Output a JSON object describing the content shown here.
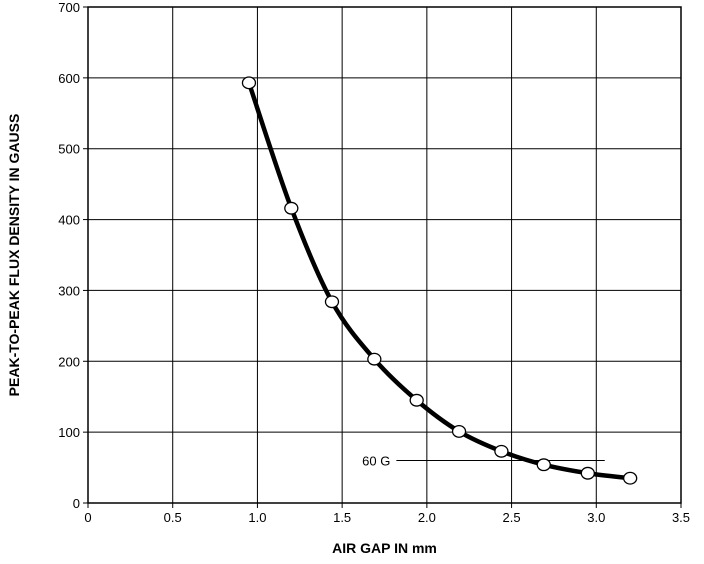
{
  "chart_data": {
    "type": "line",
    "title": "",
    "xlabel": "AIR GAP IN mm",
    "ylabel": "PEAK-TO-PEAK FLUX DENSITY IN GAUSS",
    "xlim": [
      0,
      3.5
    ],
    "ylim": [
      0,
      700
    ],
    "x_ticks": [
      0,
      0.5,
      1.0,
      1.5,
      2.0,
      2.5,
      3.0,
      3.5
    ],
    "x_tick_labels": [
      "0",
      "0.5",
      "1.0",
      "1.5",
      "2.0",
      "2.5",
      "3.0",
      "3.5"
    ],
    "y_ticks": [
      0,
      100,
      200,
      300,
      400,
      500,
      600,
      700
    ],
    "y_tick_labels": [
      "0",
      "100",
      "200",
      "300",
      "400",
      "500",
      "600",
      "700"
    ],
    "grid": true,
    "series": [
      {
        "x": [
          0.95,
          1.2,
          1.44,
          1.69,
          1.94,
          2.19,
          2.44,
          2.69,
          2.95,
          3.2
        ],
        "y": [
          593,
          416,
          284,
          203,
          145,
          101,
          73,
          54,
          42,
          35
        ]
      }
    ],
    "annotations": [
      {
        "text": "60 G",
        "x": 1.82,
        "y": 60,
        "line_to_x": 3.05
      }
    ]
  }
}
